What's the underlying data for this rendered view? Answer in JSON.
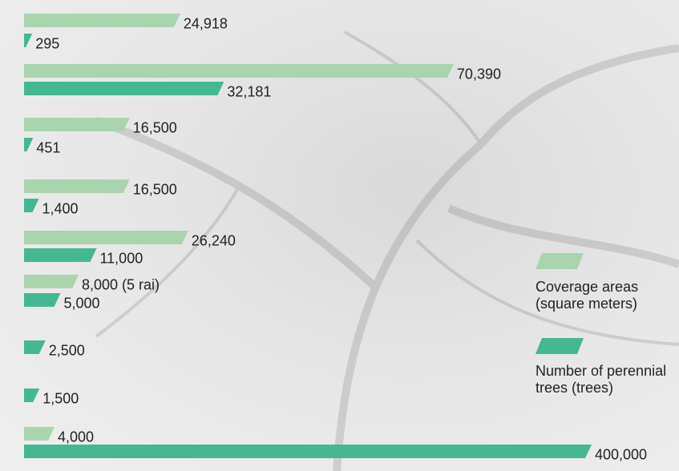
{
  "chart_data": {
    "type": "bar",
    "orientation": "horizontal",
    "series": [
      {
        "name": "Coverage areas (square meters)",
        "color": "#a9d4ae",
        "values": [
          24918,
          70390,
          16500,
          16500,
          26240,
          8000,
          null,
          null,
          4000
        ],
        "value_labels": [
          "24,918",
          "70,390",
          "16,500",
          "16,500",
          "26,240",
          "8,000 (5 rai)",
          null,
          null,
          "4,000"
        ]
      },
      {
        "name": "Number of perennial trees (trees)",
        "color": "#45b792",
        "values": [
          295,
          32181,
          451,
          1400,
          11000,
          5000,
          2500,
          1500,
          400000
        ],
        "value_labels": [
          "295",
          "32,181",
          "451",
          "1,400",
          "11,000",
          "5,000",
          "2,500",
          "1,500",
          "400,000"
        ]
      }
    ]
  }
}
